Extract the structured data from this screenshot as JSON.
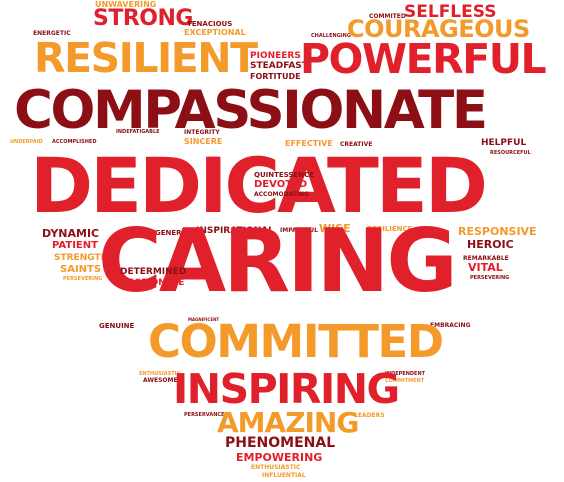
{
  "palette": {
    "dark_red": "#8b0f14",
    "red": "#e0202a",
    "orange": "#f39a2b",
    "background": "#ffffff"
  },
  "words": {
    "unwavering": "UNWAVERING",
    "strong": "STRONG",
    "tenacious": "TENACIOUS",
    "exceptional": "EXCEPTIONAL",
    "committed_small": "COMMITED",
    "selfless": "SELFLESS",
    "energetic": "ENERGETIC",
    "challenging": "CHALLENGING",
    "courageous": "COURAGEOUS",
    "resilient": "RESILIENT",
    "pioneers": "PIONEERS",
    "steadfast": "STEADFAST",
    "fortitude": "FORTITUDE",
    "powerful": "POWERFUL",
    "compassionate": "COMPASSIONATE",
    "integrity": "INTEGRITY",
    "sincere": "SINCERE",
    "indefatigable": "INDEFATIGABLE",
    "underpaid": "UNDERPAID",
    "accomplished": "ACCOMPLISHED",
    "effective": "EFFECTIVE",
    "creative": "CREATIVE",
    "helpful": "HELPFUL",
    "resourceful": "RESOURCEFUL",
    "dedicated": "DEDICATED",
    "quintessence": "QUINTESSENCE",
    "devoted": "DEVOTED",
    "accomodating": "ACCOMODATING",
    "dynamic": "DYNAMIC",
    "patient": "PATIENT",
    "strength": "STRENGTH",
    "saints": "SAINTS",
    "persevering_left": "PERSEVERING",
    "generous": "GENEROUS",
    "inspirational": "INSPIRATIONAL",
    "impactful": "IMPACTFUL",
    "wise": "WISE",
    "resilience": "RESILIENCE",
    "responsive": "RESPONSIVE",
    "heroic": "HEROIC",
    "remarkable": "REMARKABLE",
    "vital": "VITAL",
    "persevering_right": "PERSEVERING",
    "caring": "CARING",
    "determined": "DETERMINED",
    "passionate": "PASSIONATE",
    "magnificent": "MAGNIFICENT",
    "genuine": "GENUINE",
    "embracing": "EMBRACING",
    "committed": "COMMITTED",
    "enthusiastic_top": "ENTHUSIASTIC",
    "awesome": "AWESOME",
    "independent": "INDEPENDENT",
    "commitment": "COMMITMENT",
    "inspiring": "INSPIRING",
    "perservance": "PERSERVANCE",
    "leaders": "LEADERS",
    "amazing": "AMAZING",
    "phenomenal": "PHENOMENAL",
    "empowering": "EMPOWERING",
    "enthusiastic_bottom": "ENTHUSIASTIC",
    "influential": "INFLUENTIAL"
  }
}
